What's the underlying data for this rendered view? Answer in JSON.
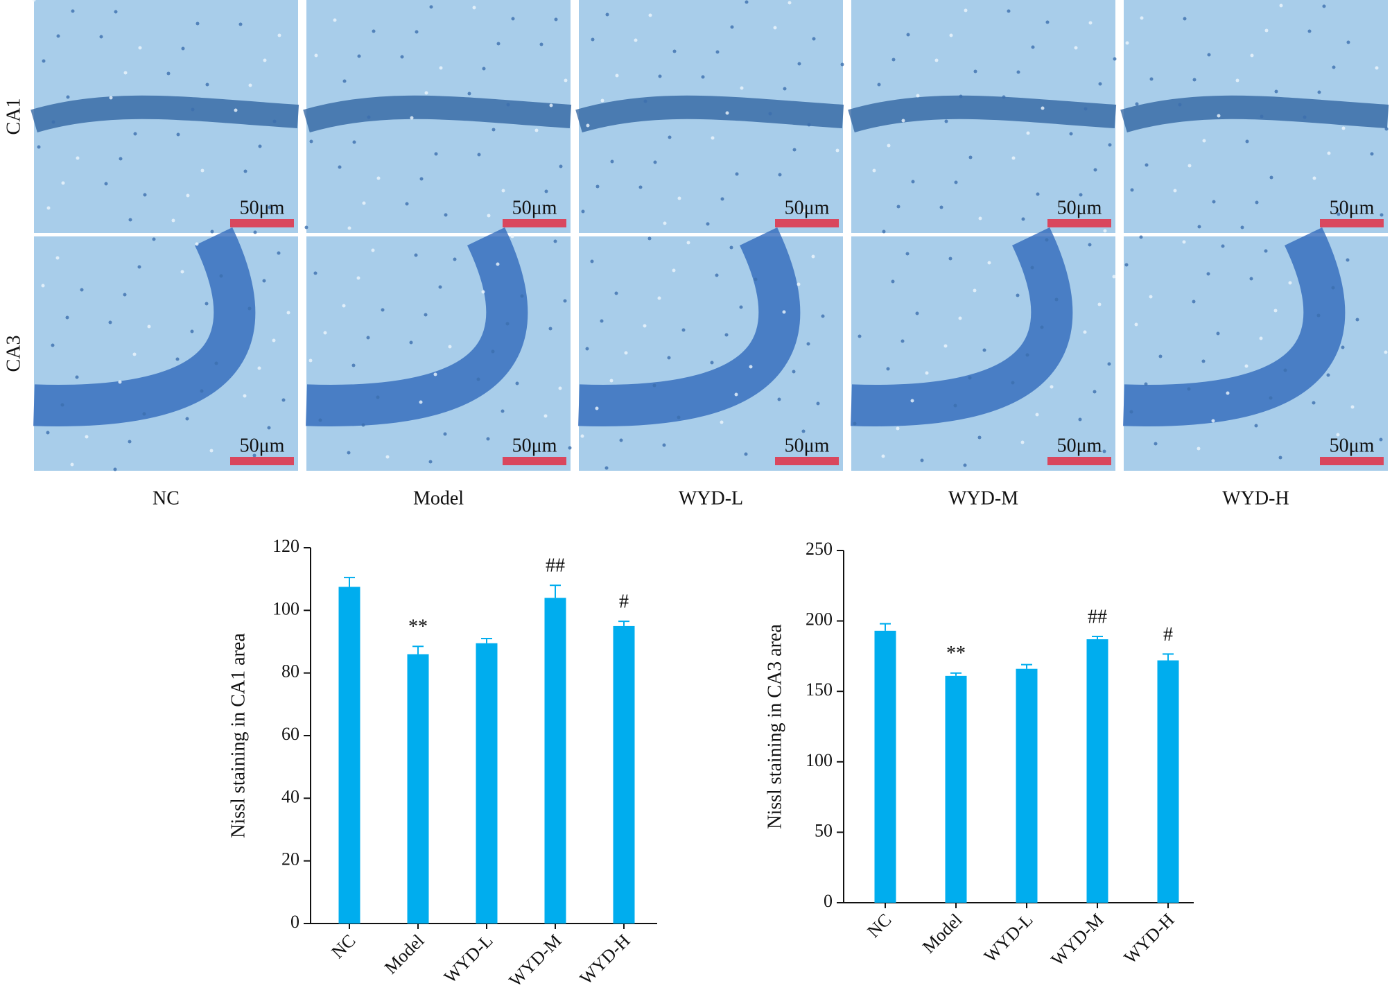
{
  "images": {
    "rows": [
      "CA1",
      "CA3"
    ],
    "columns": [
      "NC",
      "Model",
      "WYD-L",
      "WYD-M",
      "WYD-H"
    ],
    "scale_bar": "50μm"
  },
  "chart_data": [
    {
      "type": "bar",
      "ylabel": "Nissl staining in CA1 area",
      "categories": [
        "NC",
        "Model",
        "WYD-L",
        "WYD-M",
        "WYD-H"
      ],
      "values": [
        107.5,
        86,
        89.5,
        104,
        95
      ],
      "errors": [
        3,
        2.5,
        1.5,
        4,
        1.5
      ],
      "annotations": [
        null,
        "**",
        null,
        "##",
        "#"
      ],
      "color": "#00adee",
      "ylim": [
        0,
        120
      ],
      "yticks": [
        0,
        20,
        40,
        60,
        80,
        100,
        120
      ]
    },
    {
      "type": "bar",
      "ylabel": "Nissl staining in CA3 area",
      "categories": [
        "NC",
        "Model",
        "WYD-L",
        "WYD-M",
        "WYD-H"
      ],
      "values": [
        193,
        161,
        166,
        187,
        172
      ],
      "errors": [
        5,
        2,
        3,
        2,
        4.5
      ],
      "annotations": [
        null,
        "**",
        null,
        "##",
        "#"
      ],
      "color": "#00adee",
      "ylim": [
        0,
        250
      ],
      "yticks": [
        0,
        50,
        100,
        150,
        200,
        250
      ]
    }
  ]
}
